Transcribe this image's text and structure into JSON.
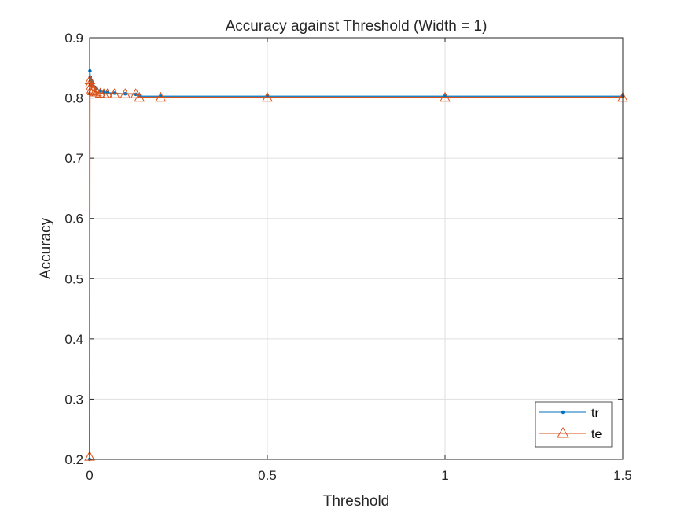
{
  "chart_data": {
    "type": "line",
    "title": "Accuracy against Threshold (Width = 1)",
    "xlabel": "Threshold",
    "ylabel": "Accuracy",
    "xlim": [
      0,
      1.5
    ],
    "ylim": [
      0.2,
      0.9
    ],
    "xticks": [
      0,
      0.5,
      1,
      1.5
    ],
    "xtick_labels": [
      "0",
      "0.5",
      "1",
      "1.5"
    ],
    "yticks": [
      0.2,
      0.3,
      0.4,
      0.5,
      0.6,
      0.7,
      0.8,
      0.9
    ],
    "ytick_labels": [
      "0.2",
      "0.3",
      "0.4",
      "0.5",
      "0.6",
      "0.7",
      "0.8",
      "0.9"
    ],
    "grid": true,
    "legend_position": "bottom-right",
    "series": [
      {
        "name": "tr",
        "color": "#0072BD",
        "marker": "dot",
        "x": [
          0,
          0.001,
          0.002,
          0.004,
          0.006,
          0.008,
          0.01,
          0.015,
          0.02,
          0.03,
          0.04,
          0.05,
          0.07,
          0.1,
          0.13,
          0.14,
          0.2,
          0.5,
          1.0,
          1.5
        ],
        "y": [
          0.2,
          0.845,
          0.835,
          0.83,
          0.826,
          0.823,
          0.82,
          0.818,
          0.815,
          0.812,
          0.81,
          0.809,
          0.808,
          0.807,
          0.806,
          0.803,
          0.803,
          0.803,
          0.803,
          0.803
        ]
      },
      {
        "name": "te",
        "color": "#D95319",
        "marker": "triangle",
        "x": [
          0,
          0.001,
          0.002,
          0.004,
          0.006,
          0.008,
          0.01,
          0.015,
          0.02,
          0.03,
          0.04,
          0.05,
          0.07,
          0.1,
          0.13,
          0.14,
          0.2,
          0.5,
          1.0,
          1.5
        ],
        "y": [
          0.205,
          0.83,
          0.825,
          0.82,
          0.815,
          0.812,
          0.812,
          0.81,
          0.81,
          0.808,
          0.807,
          0.807,
          0.807,
          0.807,
          0.807,
          0.801,
          0.801,
          0.801,
          0.801,
          0.801
        ]
      }
    ]
  }
}
